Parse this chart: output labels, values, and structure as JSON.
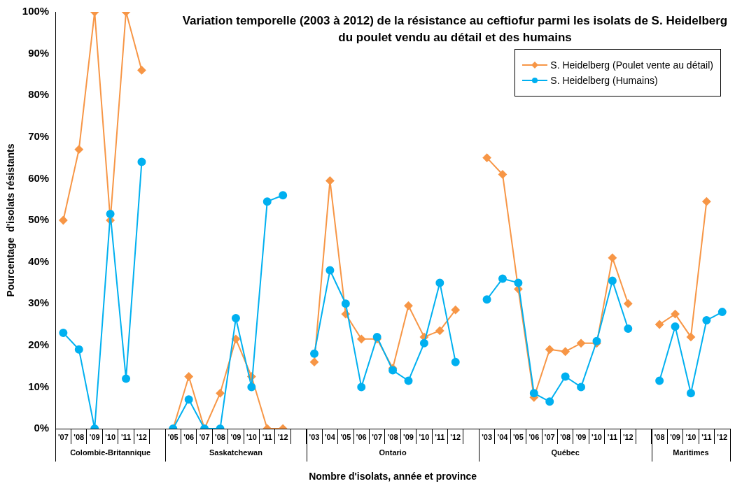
{
  "chart_data": {
    "type": "line",
    "title": "Variation temporelle (2003 à 2012) de la résistance au ceftiofur parmi les isolats de S. Heidelberg du poulet vendu au détail et des humains",
    "xlabel": "Nombre d'isolats, année et province",
    "ylabel": "Pourcentage  d'isolats résistants",
    "categories": [
      "'07",
      "'08",
      "'09",
      "'10",
      "'11",
      "'12",
      null,
      "'05",
      "'06",
      "'07",
      "'08",
      "'09",
      "'10",
      "'11",
      "'12",
      null,
      "'03",
      "'04",
      "'05",
      "'06",
      "'07",
      "'08",
      "'09",
      "'10",
      "'11",
      "'12",
      null,
      "'03",
      "'04",
      "'05",
      "'06",
      "'07",
      "'08",
      "'09",
      "'10",
      "'11",
      "'12",
      null,
      "'08",
      "'09",
      "'10",
      "'11",
      "'12"
    ],
    "annotations": [
      "Colombie-Britannique",
      "Saskatchewan",
      "Ontario",
      "Québec",
      "Maritimes"
    ],
    "series": [
      {
        "name": "S. Heidelberg (Poulet vente au détail)",
        "color": "#f79646",
        "marker": "diamond",
        "values": [
          50,
          67,
          100,
          50,
          100,
          86,
          null,
          0,
          12.5,
          0,
          8.5,
          21.5,
          12.5,
          0,
          0,
          null,
          16,
          59.5,
          27.5,
          21.5,
          21.5,
          14.5,
          29.5,
          22,
          23.5,
          28.5,
          null,
          65,
          61,
          33.5,
          7.5,
          19,
          18.5,
          20.5,
          20.5,
          41,
          30,
          null,
          25,
          27.5,
          22,
          54.5,
          null
        ]
      },
      {
        "name": "S. Heidelberg (Humains)",
        "color": "#00b0f0",
        "marker": "circle",
        "values": [
          23,
          19,
          0,
          51.5,
          12,
          64,
          null,
          0,
          7,
          0,
          0,
          26.5,
          10,
          54.5,
          56,
          null,
          18,
          38,
          30,
          10,
          22,
          14,
          11.5,
          20.5,
          35,
          16,
          null,
          31,
          36,
          35,
          8.5,
          6.5,
          12.5,
          10,
          21,
          35.5,
          24,
          null,
          11.5,
          24.5,
          8.5,
          26,
          28
        ]
      }
    ],
    "ylim": [
      0,
      100
    ],
    "yticks": [
      {
        "value": 0,
        "label": "0%"
      },
      {
        "value": 10,
        "label": "10%"
      },
      {
        "value": 20,
        "label": "20%"
      },
      {
        "value": 30,
        "label": "30%"
      },
      {
        "value": 40,
        "label": "40%"
      },
      {
        "value": 50,
        "label": "50%"
      },
      {
        "value": 60,
        "label": "60%"
      },
      {
        "value": 70,
        "label": "70%"
      },
      {
        "value": 80,
        "label": "80%"
      },
      {
        "value": 90,
        "label": "90%"
      },
      {
        "value": 100,
        "label": "100%"
      }
    ],
    "grid": false,
    "legend": "top right",
    "line_style": "solid"
  }
}
